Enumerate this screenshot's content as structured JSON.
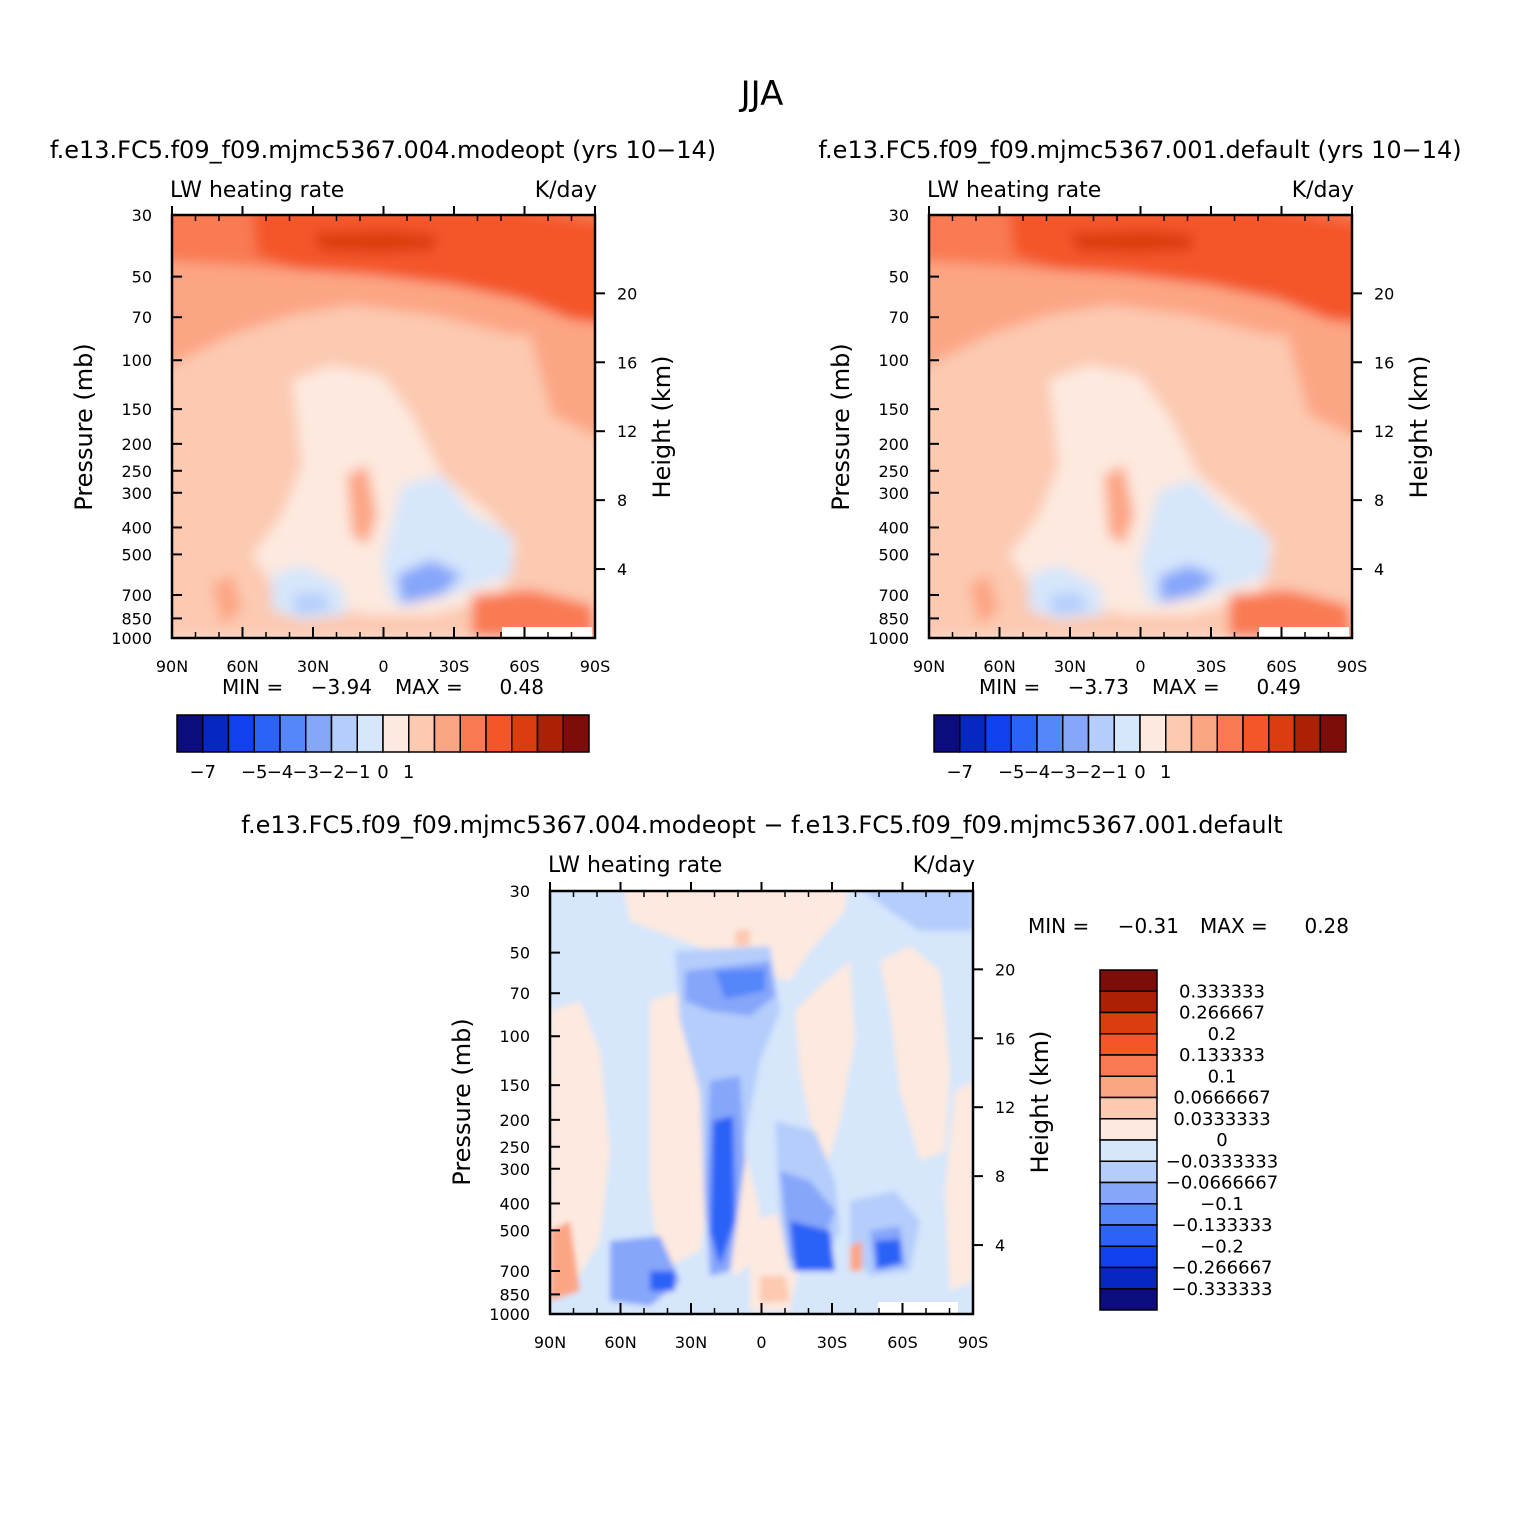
{
  "figure": {
    "title": "JJA"
  },
  "colors": {
    "reds": [
      "#fde9df",
      "#fcc9b1",
      "#fca584",
      "#f97a52",
      "#f45629",
      "#db3e0e",
      "#ac2106",
      "#7d0d0a"
    ],
    "blues": [
      "#d6e6fb",
      "#b4cdfb",
      "#86a6fa",
      "#5586fa",
      "#2b62f7",
      "#1141ee",
      "#0728c0",
      "#0c0c7e"
    ]
  },
  "chart_data": [
    {
      "type": "contour",
      "id": "panel1",
      "title": "f.e13.FC5.f09_f09.mjmc5367.004.modeopt (yrs 10−14)",
      "left_label": "LW heating rate",
      "right_label": "K/day",
      "ylabel": "Pressure (mb)",
      "y2label": "Height (km)",
      "pressure_ticks": [
        "30",
        "50",
        "70",
        "100",
        "150",
        "200",
        "250",
        "300",
        "400",
        "500",
        "700",
        "850",
        "1000"
      ],
      "pressure_tick_values": [
        30,
        50,
        70,
        100,
        150,
        200,
        250,
        300,
        400,
        500,
        700,
        850,
        1000
      ],
      "height_ticks": [
        "20",
        "16",
        "12",
        "8",
        "4"
      ],
      "height_tick_values": [
        20,
        16,
        12,
        8,
        4
      ],
      "lat_ticks": [
        "90N",
        "60N",
        "30N",
        "0",
        "30S",
        "60S",
        "90S"
      ],
      "min_label": "MIN =",
      "min": "−3.94",
      "max_label": "MAX =",
      "max": "0.48",
      "colorbar_labels": [
        "−7",
        "−5",
        "−4",
        "−3",
        "−2",
        "−1",
        "0",
        "1"
      ]
    },
    {
      "type": "contour",
      "id": "panel2",
      "title": "f.e13.FC5.f09_f09.mjmc5367.001.default (yrs 10−14)",
      "left_label": "LW heating rate",
      "right_label": "K/day",
      "ylabel": "Pressure (mb)",
      "y2label": "Height (km)",
      "pressure_ticks": [
        "30",
        "50",
        "70",
        "100",
        "150",
        "200",
        "250",
        "300",
        "400",
        "500",
        "700",
        "850",
        "1000"
      ],
      "pressure_tick_values": [
        30,
        50,
        70,
        100,
        150,
        200,
        250,
        300,
        400,
        500,
        700,
        850,
        1000
      ],
      "height_ticks": [
        "20",
        "16",
        "12",
        "8",
        "4"
      ],
      "height_tick_values": [
        20,
        16,
        12,
        8,
        4
      ],
      "lat_ticks": [
        "90N",
        "60N",
        "30N",
        "0",
        "30S",
        "60S",
        "90S"
      ],
      "min_label": "MIN =",
      "min": "−3.73",
      "max_label": "MAX =",
      "max": "0.49",
      "colorbar_labels": [
        "−7",
        "−5",
        "−4",
        "−3",
        "−2",
        "−1",
        "0",
        "1"
      ]
    },
    {
      "type": "contour",
      "id": "panel3",
      "title": "f.e13.FC5.f09_f09.mjmc5367.004.modeopt − f.e13.FC5.f09_f09.mjmc5367.001.default",
      "left_label": "LW heating rate",
      "right_label": "K/day",
      "ylabel": "Pressure (mb)",
      "y2label": "Height (km)",
      "pressure_ticks": [
        "30",
        "50",
        "70",
        "100",
        "150",
        "200",
        "250",
        "300",
        "400",
        "500",
        "700",
        "850",
        "1000"
      ],
      "pressure_tick_values": [
        30,
        50,
        70,
        100,
        150,
        200,
        250,
        300,
        400,
        500,
        700,
        850,
        1000
      ],
      "height_ticks": [
        "20",
        "16",
        "12",
        "8",
        "4"
      ],
      "height_tick_values": [
        20,
        16,
        12,
        8,
        4
      ],
      "lat_ticks": [
        "90N",
        "60N",
        "30N",
        "0",
        "30S",
        "60S",
        "90S"
      ],
      "min_label": "MIN =",
      "min": "−0.31",
      "max_label": "MAX =",
      "max": "0.28",
      "colorbar_labels": [
        "0.333333",
        "0.266667",
        "0.2",
        "0.133333",
        "0.1",
        "0.0666667",
        "0.0333333",
        "0",
        "−0.0333333",
        "−0.0666667",
        "−0.1",
        "−0.133333",
        "−0.2",
        "−0.266667",
        "−0.333333"
      ]
    }
  ]
}
